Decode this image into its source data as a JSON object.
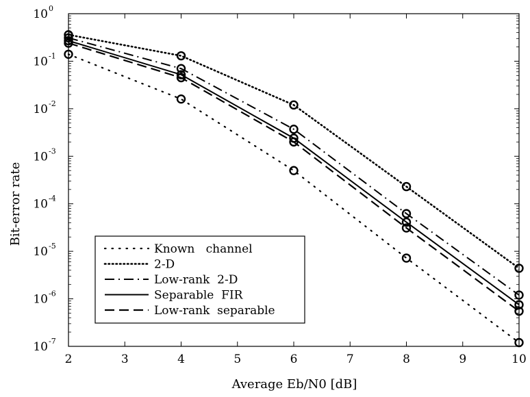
{
  "chart_data": {
    "type": "line",
    "title": "",
    "xlabel": "Average  Eb/N0  [dB]",
    "ylabel": "Bit-error  rate",
    "xlim": [
      2,
      10
    ],
    "ylim": [
      1e-07,
      1
    ],
    "yscale": "log",
    "grid": false,
    "legend_position": "bottom-left",
    "x": [
      2,
      4,
      6,
      8,
      10
    ],
    "xticks": [
      "2",
      "3",
      "4",
      "5",
      "6",
      "7",
      "8",
      "9",
      "10"
    ],
    "yticks": [
      {
        "base": "10",
        "exp": "0"
      },
      {
        "base": "10",
        "exp": "-1"
      },
      {
        "base": "10",
        "exp": "-2"
      },
      {
        "base": "10",
        "exp": "-3"
      },
      {
        "base": "10",
        "exp": "-4"
      },
      {
        "base": "10",
        "exp": "-5"
      },
      {
        "base": "10",
        "exp": "-6"
      },
      {
        "base": "10",
        "exp": "-7"
      }
    ],
    "series": [
      {
        "name": "Known   channel",
        "style": "sparse-dotted",
        "values": [
          0.14,
          0.016,
          0.0005,
          7.2e-06,
          1.2e-07
        ]
      },
      {
        "name": "2-D",
        "style": "dense-dotted",
        "values": [
          0.36,
          0.13,
          0.012,
          0.00023,
          4.4e-06
        ]
      },
      {
        "name": "Low-rank  2-D",
        "style": "dash-dot",
        "values": [
          0.31,
          0.07,
          0.0037,
          6.2e-05,
          1.2e-06
        ]
      },
      {
        "name": "Separable  FIR",
        "style": "solid",
        "values": [
          0.27,
          0.052,
          0.0024,
          4.1e-05,
          7.5e-07
        ]
      },
      {
        "name": "Low-rank  separable",
        "style": "dashed",
        "values": [
          0.24,
          0.045,
          0.002,
          3.1e-05,
          5.5e-07
        ]
      }
    ],
    "marker": "circle",
    "colors": {
      "line": "#000000",
      "background": "#ffffff"
    }
  }
}
